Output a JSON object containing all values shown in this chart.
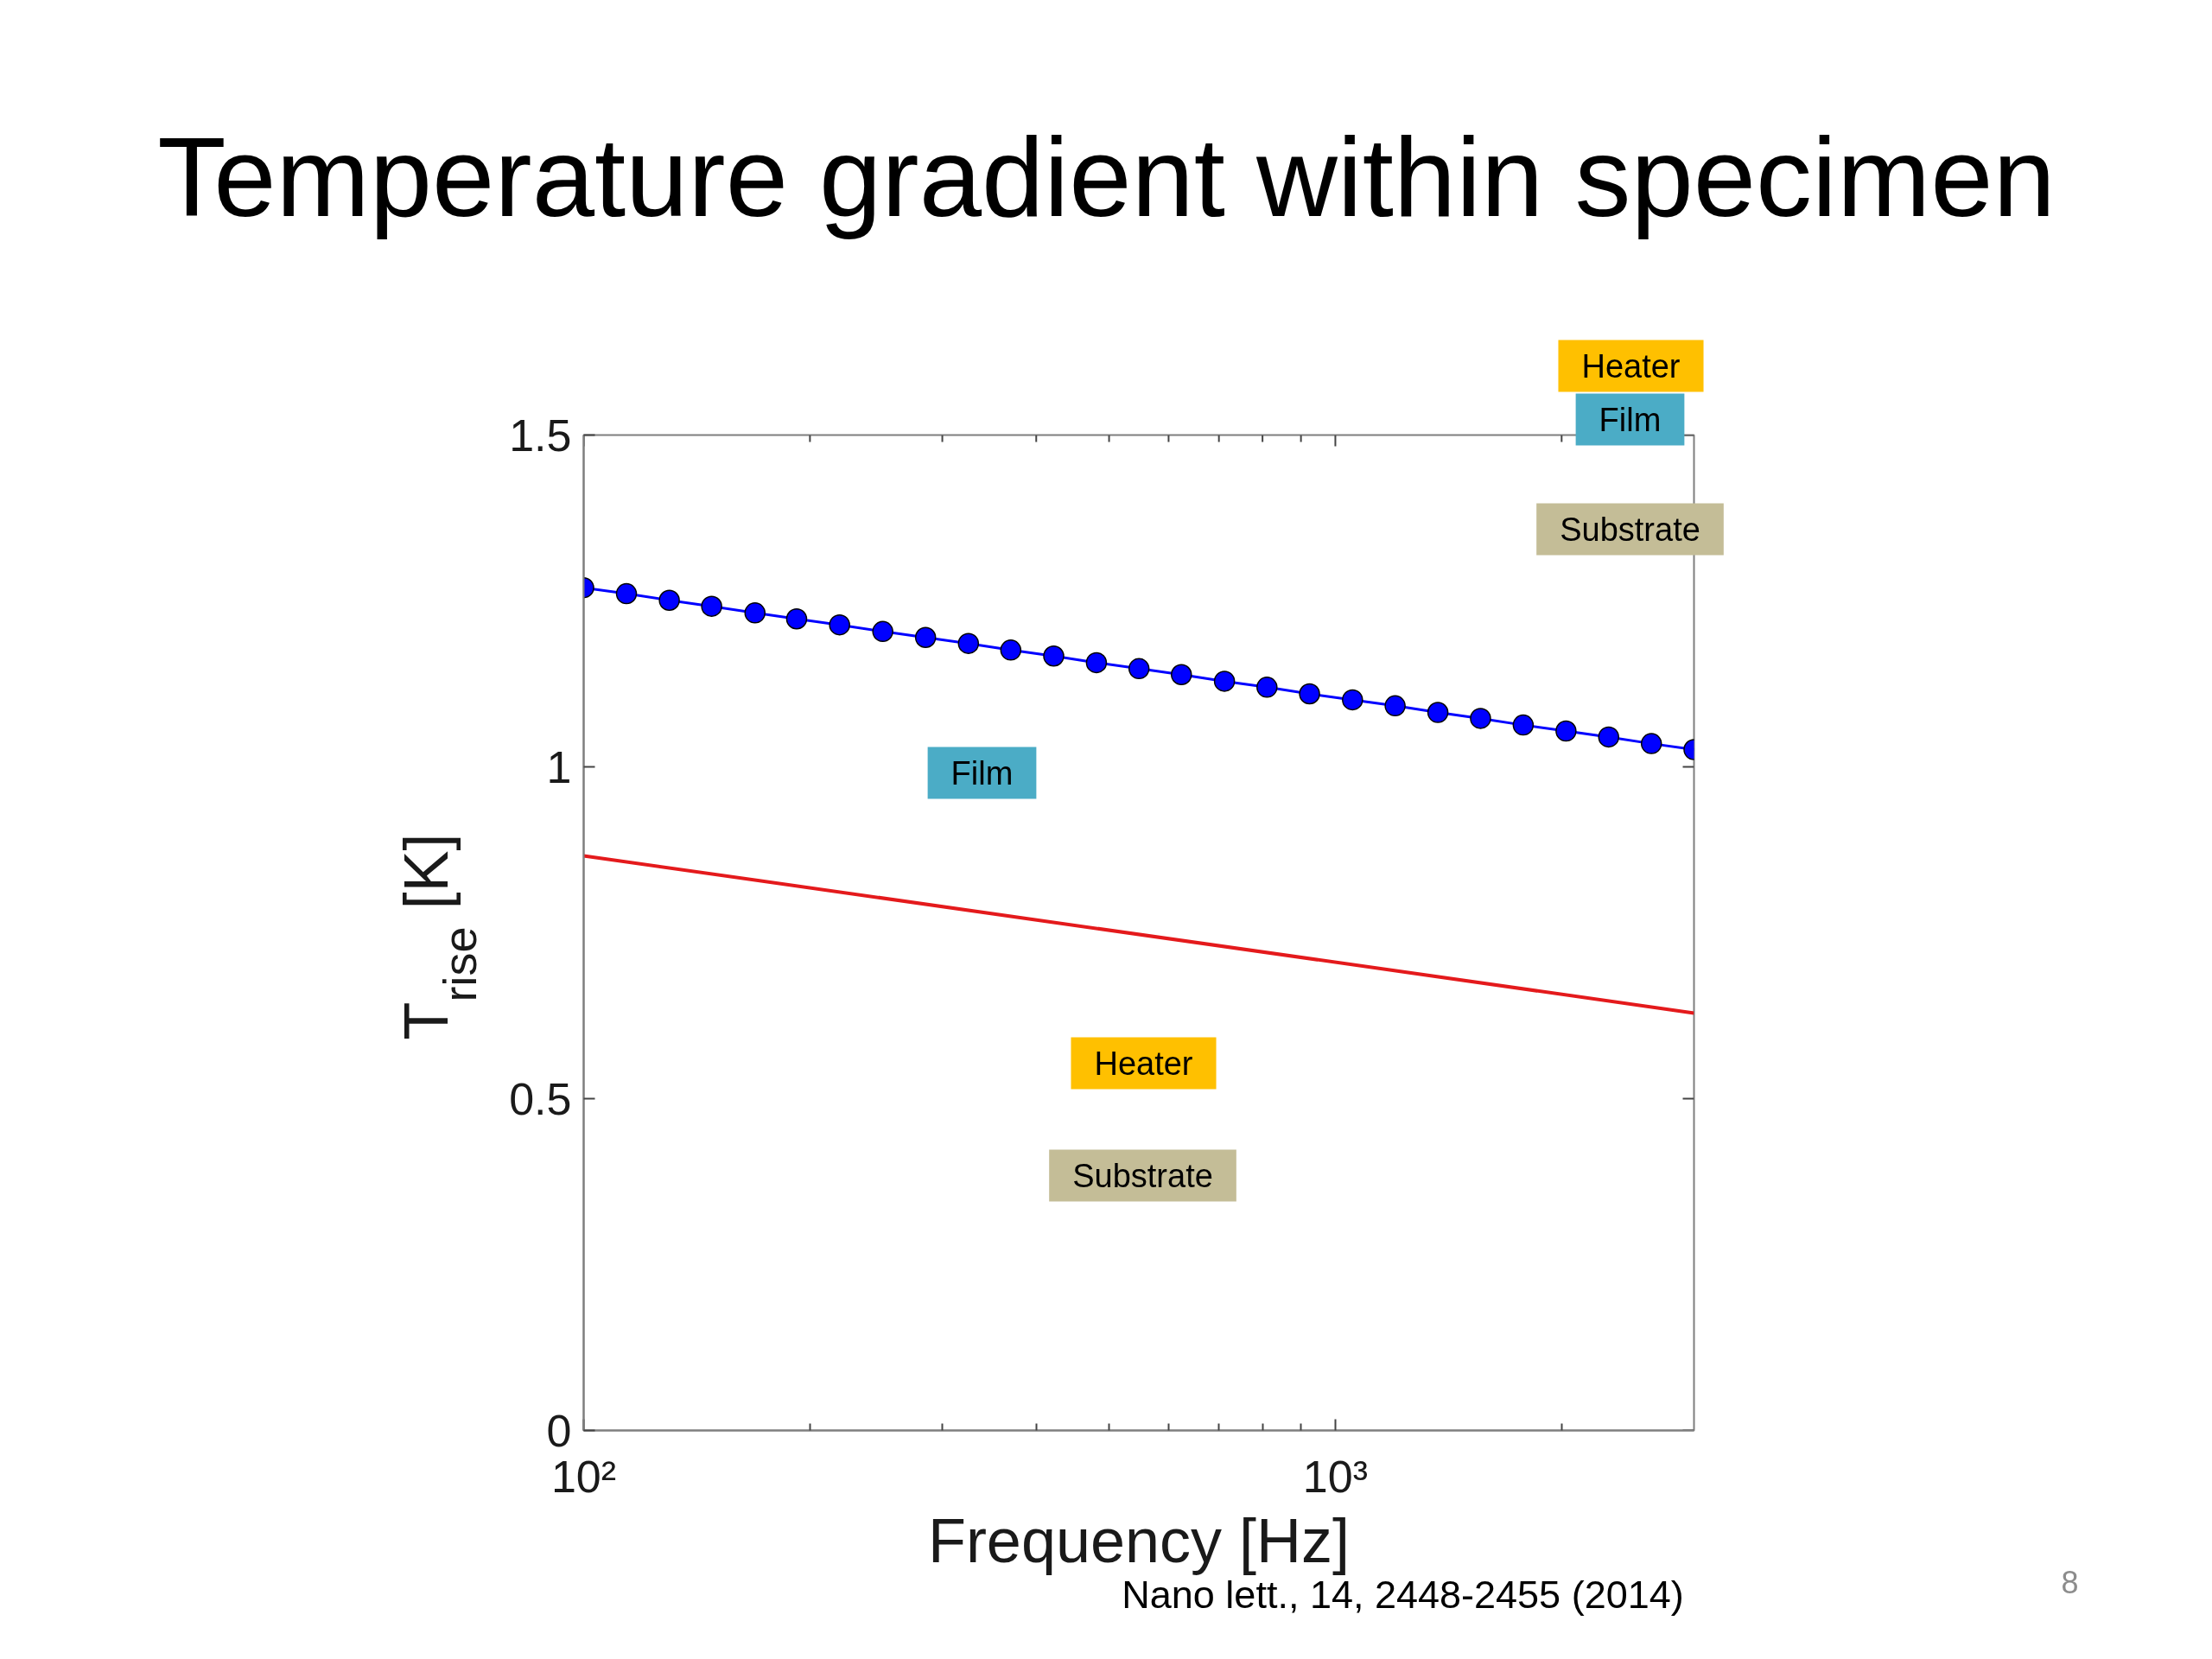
{
  "chart_data": {
    "type": "line",
    "title": "Temperature gradient within specimen",
    "xlabel": "Frequency [Hz]",
    "ylabel": "T$_{rise}$ [K]",
    "log": "x",
    "marker": "circle",
    "x": [
      100,
      114,
      130,
      148,
      169,
      192,
      219,
      250,
      285,
      325,
      370,
      422,
      481,
      548,
      624,
      712,
      811,
      924,
      1054,
      1201,
      1369,
      1560,
      1778,
      2027,
      2310,
      2633,
      3000
    ],
    "series": [
      {
        "color": "#0000ff",
        "values": [
          1.27,
          1.261,
          1.251,
          1.242,
          1.232,
          1.223,
          1.214,
          1.204,
          1.195,
          1.186,
          1.176,
          1.167,
          1.157,
          1.148,
          1.139,
          1.129,
          1.12,
          1.11,
          1.101,
          1.092,
          1.082,
          1.073,
          1.063,
          1.054,
          1.045,
          1.035,
          1.026
        ]
      },
      {
        "color": "#e41a1c",
        "marker": "none",
        "x": [
          100,
          3000
        ],
        "values": [
          0.866,
          0.629
        ]
      }
    ],
    "xlim": [
      100,
      3000
    ],
    "xticks": [
      {
        "value": 100,
        "label": "10²"
      },
      {
        "value": 200,
        "label": null
      },
      {
        "value": 300,
        "label": null
      },
      {
        "value": 400,
        "label": null
      },
      {
        "value": 500,
        "label": null
      },
      {
        "value": 600,
        "label": null
      },
      {
        "value": 700,
        "label": null
      },
      {
        "value": 800,
        "label": null
      },
      {
        "value": 900,
        "label": null
      },
      {
        "value": 1000,
        "label": "10³"
      },
      {
        "value": 2000,
        "label": null
      }
    ],
    "ylim": [
      0,
      1.5
    ],
    "yticks": [
      0,
      0.5,
      1,
      1.5
    ],
    "annotations": [
      "Heater",
      "Film",
      "Substrate",
      "Film",
      "Heater",
      "Substrate",
      "Nano lett., 14, 2448-2455 (2014)",
      "8"
    ]
  }
}
